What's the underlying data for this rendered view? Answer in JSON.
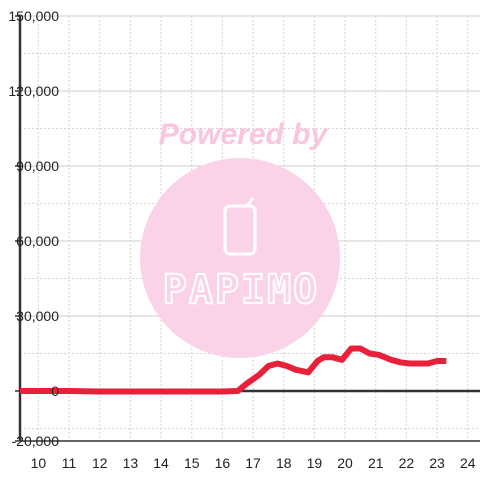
{
  "chart_data": {
    "type": "line",
    "title": "",
    "xlabel": "",
    "ylabel": "",
    "xlim": [
      9.4,
      24.4
    ],
    "ylim": [
      -20000,
      150000
    ],
    "grid": true,
    "x_ticks": [
      10,
      11,
      12,
      13,
      14,
      15,
      16,
      17,
      18,
      19,
      20,
      21,
      22,
      23,
      24
    ],
    "x_tick_labels": [
      "10",
      "11",
      "12",
      "13",
      "14",
      "15",
      "16",
      "17",
      "18",
      "19",
      "20",
      "21",
      "22",
      "23",
      "24"
    ],
    "y_ticks": [
      150000,
      120000,
      90000,
      60000,
      30000,
      0,
      -20000
    ],
    "y_tick_labels": [
      "150,000",
      "120,000",
      "90,000",
      "60,000",
      "30,000",
      "0",
      "-20,000"
    ],
    "series": [
      {
        "x": [
          9.4,
          10,
          11,
          12,
          13,
          14,
          15,
          16,
          16.5,
          16.8,
          17.2,
          17.5,
          17.8,
          18.1,
          18.4,
          18.8,
          19.1,
          19.3,
          19.6,
          19.9,
          20.2,
          20.5,
          20.8,
          21.1,
          21.5,
          21.8,
          22.1,
          22.4,
          22.7,
          23.0,
          23.3
        ],
        "values": [
          0,
          0,
          0,
          -200,
          -200,
          -200,
          -200,
          -200,
          0,
          3000,
          6500,
          10000,
          11000,
          10000,
          8500,
          7500,
          12000,
          13500,
          13500,
          12500,
          17000,
          17000,
          15000,
          14500,
          12500,
          11500,
          11000,
          11000,
          11000,
          12000,
          12000
        ],
        "color": "#e8203a"
      }
    ],
    "colors": {
      "series_line": "#e8203a",
      "axis": "#333333",
      "grid_solid": "#cccccc",
      "grid_dotted": "#d4d4d4",
      "watermark_circle": "#fbd3e8",
      "watermark_text": "#f9c6de"
    }
  },
  "watermark": {
    "line1": "Powered by",
    "brand": "PAPIMO",
    "icon": "phone-icon"
  }
}
